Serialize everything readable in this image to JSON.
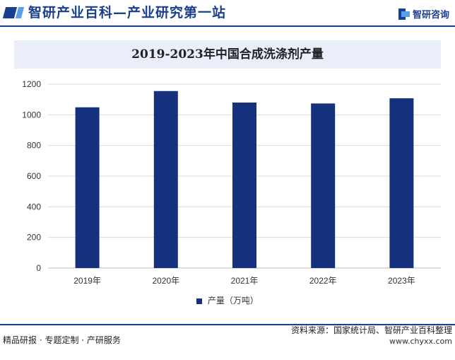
{
  "header": {
    "title": "智研产业百科—产业研究第一站",
    "logo_text": "智研咨询"
  },
  "footer": {
    "left_text": "精品研报 · 专题定制 · 产研服务",
    "source_text": "资料来源：国家统计局、智研产业百科整理",
    "url": "www.chyxx.com"
  },
  "colors": {
    "bar": "#15317e",
    "brand": "#1b3f8f",
    "title_band": "#e9eef8",
    "grid": "#d9d9d9"
  },
  "chart_data": {
    "type": "bar",
    "title": "2019-2023年中国合成洗涤剂产量",
    "categories": [
      "2019年",
      "2020年",
      "2021年",
      "2022年",
      "2023年"
    ],
    "series": [
      {
        "name": "产量（万吨）",
        "values": [
          1049,
          1155,
          1080,
          1074,
          1108
        ]
      }
    ],
    "yticks": [
      "0",
      "200",
      "400",
      "600",
      "800",
      "1000",
      "1200"
    ],
    "ylim": [
      0,
      1200
    ],
    "grid": true,
    "legend": "bottom"
  }
}
